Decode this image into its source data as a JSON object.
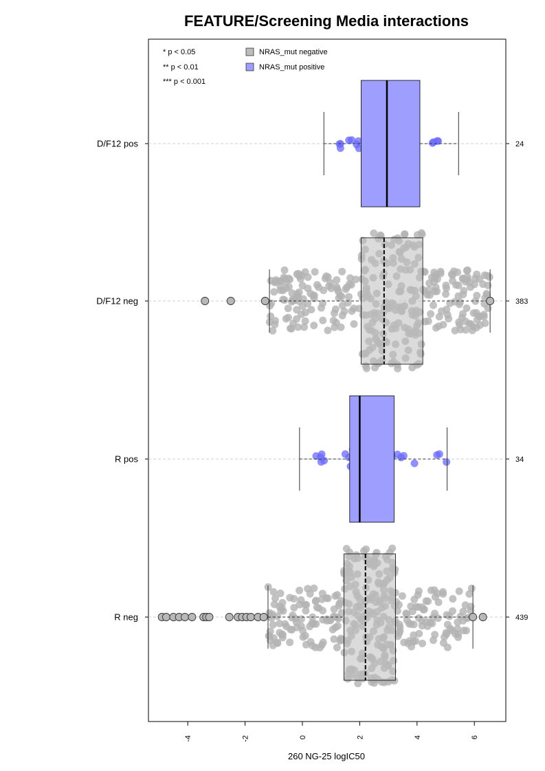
{
  "colors": {
    "negative": "#bdbdbd",
    "positive": "#9e9eff",
    "positive_points": "#6a6aff",
    "negative_points": "#b3b3b3",
    "guide": "#cfcfcf",
    "axis": "#000000"
  },
  "chart_data": {
    "type": "boxplot",
    "title": "FEATURE/Screening Media interactions",
    "xlabel": "260 NG-25 logIC50",
    "ylabel": "",
    "xlim": [
      -5.3,
      7.0
    ],
    "x_ticks": [
      -4,
      -2,
      0,
      2,
      4,
      6
    ],
    "x_tick_labels": [
      "-4",
      "-2",
      "0",
      "2",
      "4",
      "6"
    ],
    "grid": false,
    "legend_position": "top-left",
    "significance_legend": [
      "* p < 0.05",
      "** p < 0.01",
      "*** p < 0.001"
    ],
    "legend": [
      {
        "name": "NRAS_mut negative",
        "color": "#bdbdbd"
      },
      {
        "name": "NRAS_mut positive",
        "color": "#9e9eff"
      }
    ],
    "groups": [
      {
        "label": "D/F12 pos",
        "count": "24",
        "status": "positive",
        "whisker_low": 0.75,
        "q1": 2.05,
        "median": 2.95,
        "q3": 4.1,
        "whisker_high": 5.45,
        "outliers": []
      },
      {
        "label": "D/F12 neg",
        "count": "383",
        "status": "negative",
        "whisker_low": -1.15,
        "q1": 2.05,
        "median": 2.85,
        "q3": 4.2,
        "whisker_high": 6.55,
        "outliers": [
          -3.4,
          -2.5,
          -1.3,
          6.55
        ]
      },
      {
        "label": "R pos",
        "count": "34",
        "status": "positive",
        "whisker_low": -0.1,
        "q1": 1.65,
        "median": 2.0,
        "q3": 3.2,
        "whisker_high": 5.05,
        "outliers": []
      },
      {
        "label": "R neg",
        "count": "439",
        "status": "negative",
        "whisker_low": -1.2,
        "q1": 1.45,
        "median": 2.2,
        "q3": 3.25,
        "whisker_high": 5.95,
        "outliers": [
          -4.9,
          -4.75,
          -4.5,
          -4.3,
          -4.1,
          -3.85,
          -3.45,
          -3.35,
          -3.25,
          -2.55,
          -2.25,
          -2.1,
          -1.95,
          -1.8,
          -1.55,
          -1.35,
          5.95,
          6.3
        ]
      }
    ]
  }
}
